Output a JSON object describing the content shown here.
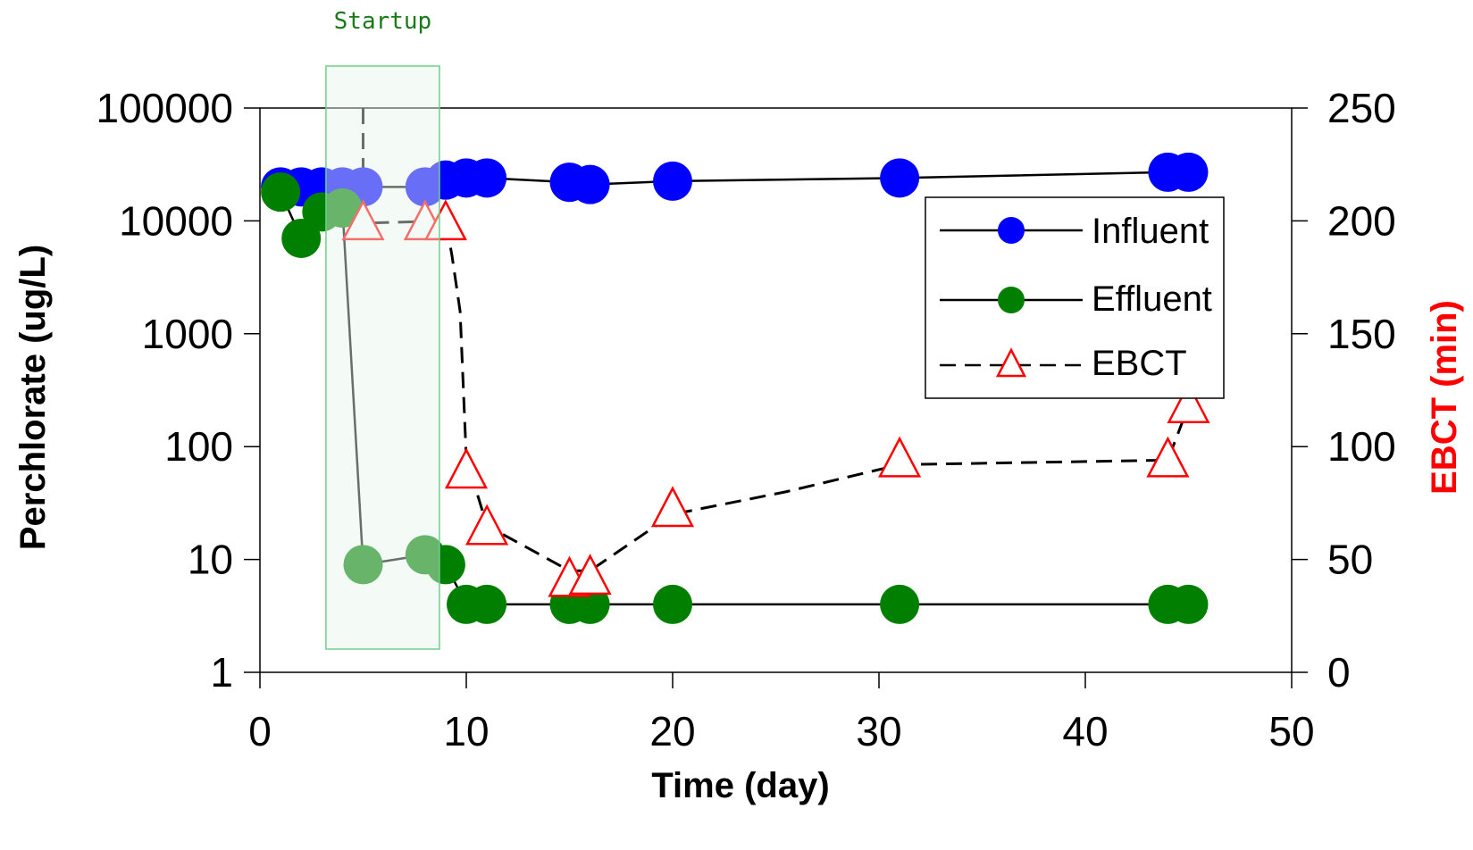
{
  "chart_data": {
    "type": "scatter",
    "xlabel": "Time (day)",
    "ylabel_left": "Perchlorate (ug/L)",
    "ylabel_right": "EBCT (min)",
    "xlim": [
      0,
      50
    ],
    "x_ticks": [
      "0",
      "10",
      "20",
      "30",
      "40",
      "50"
    ],
    "y_left_scale": "log",
    "y_left_lim": [
      1,
      100000
    ],
    "y_left_ticks": [
      "1",
      "10",
      "100",
      "1000",
      "10000",
      "100000"
    ],
    "y_right_lim": [
      0,
      250
    ],
    "y_right_ticks": [
      "0",
      "50",
      "100",
      "150",
      "200",
      "250"
    ],
    "grid": false,
    "legend_position": "upper-right inside plot",
    "annotation": {
      "label": "Startup",
      "x_range": [
        3.2,
        8.7
      ]
    },
    "series": [
      {
        "name": "Influent",
        "axis": "left",
        "color": "#0000ff",
        "marker": "circle",
        "line": "solid",
        "x": [
          1,
          2,
          3,
          4,
          5,
          8,
          9,
          10,
          11,
          15,
          16,
          20,
          31,
          44,
          45
        ],
        "y": [
          20000,
          20000,
          20000,
          20000,
          20000,
          20000,
          23000,
          24000,
          24000,
          22000,
          21000,
          22500,
          24000,
          27000,
          27000
        ]
      },
      {
        "name": "Effluent",
        "axis": "left",
        "color": "#007f00",
        "marker": "circle",
        "line": "solid",
        "x": [
          1,
          2,
          3,
          4,
          5,
          8,
          9,
          10,
          11,
          15,
          16,
          20,
          31,
          44,
          45
        ],
        "y": [
          18000,
          7000,
          12000,
          13000,
          9,
          11,
          9,
          4,
          4,
          4,
          4,
          4,
          4,
          4,
          4
        ]
      },
      {
        "name": "EBCT",
        "axis": "right",
        "color": "#ff0000",
        "marker": "triangle-open",
        "line": "dashed",
        "x": [
          5,
          8,
          9,
          10,
          11,
          15,
          16,
          20,
          31,
          44,
          45
        ],
        "y": [
          199,
          199,
          199,
          89,
          64,
          41,
          42,
          72,
          94,
          94,
          118
        ]
      }
    ],
    "ebct_line_path": {
      "x": [
        5,
        5,
        5,
        9,
        9.3,
        9.7,
        10,
        11,
        15,
        16,
        20,
        25.5,
        31,
        44,
        45
      ],
      "y": [
        250,
        199,
        199,
        200,
        185,
        160,
        95,
        65,
        45,
        45,
        70,
        80,
        92,
        94,
        118
      ]
    },
    "colors": {
      "influent": "#0000ff",
      "effluent": "#007f00",
      "ebct": "#ff0000",
      "right_axis_title": "#ff0000",
      "startup_fill": "#e6f7ea",
      "startup_stroke": "#6fcf8a",
      "annotation_text": "#1a7a1a"
    }
  }
}
